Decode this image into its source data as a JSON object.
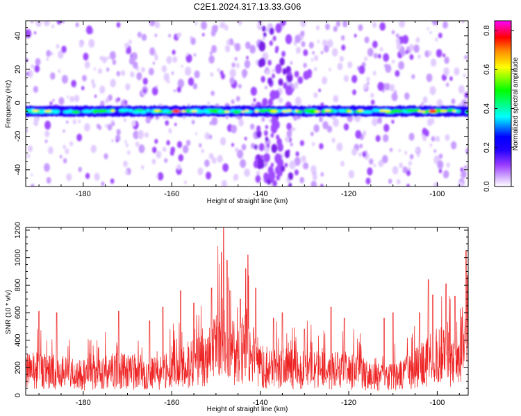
{
  "title": "C2E1.2024.317.13.33.G06",
  "chart_data": [
    {
      "type": "heatmap",
      "xlabel": "Height of straight line (km)",
      "ylabel": "Frequency (Hz)",
      "xlim": [
        -193,
        -93
      ],
      "ylim": [
        -50,
        49
      ],
      "xticks": [
        -180,
        -160,
        -140,
        -120,
        -100
      ],
      "yticks": [
        -40,
        -20,
        0,
        20,
        40
      ],
      "band_center_hz": -5,
      "band_halfwidth_hz": 3,
      "hotspots_km": [
        -159,
        -101
      ],
      "colorbar": {
        "label": "Normalized spectral amplitude",
        "range": [
          0.0,
          0.85
        ],
        "ticks": [
          0.0,
          0.2,
          0.4,
          0.6,
          0.8
        ],
        "colors": [
          "#ffffff",
          "#9a3cff",
          "#2200ff",
          "#0000ff",
          "#00ffff",
          "#00ff00",
          "#ffff00",
          "#ff8800",
          "#ff0000",
          "#ff00ff"
        ]
      }
    },
    {
      "type": "line",
      "xlabel": "Height of straight line (km)",
      "ylabel": "SNR (10 * v/v)",
      "xlim": [
        -193,
        -93
      ],
      "ylim": [
        0,
        1220
      ],
      "xticks": [
        -180,
        -160,
        -140,
        -120,
        -100
      ],
      "yticks": [
        0,
        200,
        400,
        600,
        800,
        1000,
        1200
      ],
      "color": "#ee2222",
      "envelope": {
        "x": [
          -193,
          -188,
          -183,
          -178,
          -173,
          -168,
          -163,
          -160,
          -156,
          -152,
          -149,
          -147,
          -145,
          -143,
          -141,
          -139,
          -136,
          -133,
          -130,
          -126,
          -122,
          -118,
          -115,
          -112,
          -109,
          -106,
          -103,
          -100,
          -97,
          -95,
          -93
        ],
        "y": [
          270,
          250,
          240,
          220,
          260,
          250,
          240,
          270,
          330,
          380,
          620,
          480,
          450,
          560,
          380,
          300,
          290,
          280,
          290,
          260,
          280,
          250,
          200,
          190,
          210,
          260,
          330,
          420,
          400,
          380,
          520
        ]
      },
      "peaks": {
        "x": [
          -190,
          -186,
          -172,
          -165,
          -162,
          -158,
          -155,
          -151,
          -148.8,
          -148.3,
          -147.5,
          -147,
          -144.5,
          -143.3,
          -142.8,
          -141,
          -137,
          -135,
          -130,
          -124,
          -121,
          -112,
          -110,
          -104,
          -102,
          -101,
          -98,
          -96,
          -93.5
        ],
        "y": [
          610,
          600,
          610,
          540,
          640,
          760,
          670,
          780,
          1040,
          1240,
          980,
          760,
          700,
          920,
          1020,
          780,
          560,
          600,
          480,
          640,
          560,
          560,
          600,
          600,
          840,
          730,
          810,
          720,
          1050
        ]
      }
    }
  ]
}
